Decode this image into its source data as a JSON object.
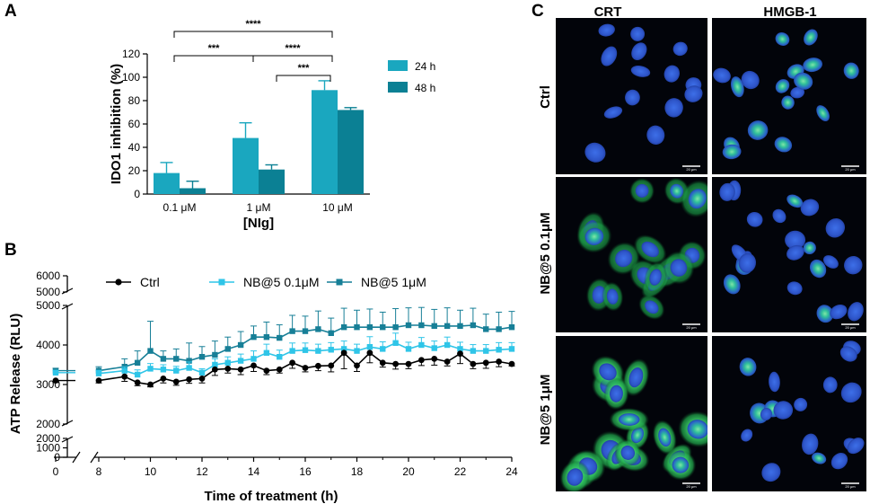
{
  "panels": {
    "a_label": "A",
    "b_label": "B",
    "c_label": "C"
  },
  "chart_data": [
    {
      "type": "bar",
      "panel": "A",
      "title": "",
      "xlabel": "[NIg]",
      "ylabel": "IDO1 inhibition (%)",
      "ylim": [
        0,
        120
      ],
      "yticks": [
        0,
        20,
        40,
        60,
        80,
        100,
        120
      ],
      "categories": [
        "0.1 μM",
        "1 μM",
        "10 μM"
      ],
      "series": [
        {
          "name": "24 h",
          "color": "#1aa7bf",
          "values": [
            18,
            48,
            89
          ],
          "errors": [
            9,
            13,
            8
          ]
        },
        {
          "name": "48 h",
          "color": "#0b8094",
          "values": [
            5,
            21,
            72
          ],
          "errors": [
            6,
            4,
            2
          ]
        }
      ],
      "significance": [
        {
          "label": "****",
          "from": "0.1 μM",
          "to": "10 μM",
          "level": 3
        },
        {
          "label": "***",
          "from": "0.1 μM",
          "to": "1 μM",
          "level": 2
        },
        {
          "label": "****",
          "from": "1 μM",
          "to": "10 μM",
          "level": 2
        },
        {
          "label": "***",
          "from": "1 μM",
          "to": "10 μM",
          "level": 1
        }
      ],
      "legend": "right"
    },
    {
      "type": "line",
      "panel": "B",
      "title": "",
      "xlabel": "Time of treatment (h)",
      "ylabel": "ATP Release (RLU)",
      "xticks": [
        0,
        8,
        10,
        12,
        14,
        16,
        18,
        20,
        22,
        24
      ],
      "yticks_lower": [
        0,
        1000,
        2000
      ],
      "yticks_main": [
        2000,
        3000,
        4000,
        5000
      ],
      "yticks_upper": [
        5000,
        6000
      ],
      "axis_breaks": {
        "x": [
          0,
          8
        ],
        "y": [
          [
            2000,
            2000
          ],
          [
            5000,
            5000
          ]
        ]
      },
      "series": [
        {
          "name": "Ctrl",
          "color": "#000000",
          "marker": "circle",
          "x": [
            0,
            8,
            9,
            9.5,
            10,
            10.5,
            11,
            11.5,
            12,
            12.5,
            13,
            13.5,
            14,
            14.5,
            15,
            15.5,
            16,
            16.5,
            17,
            17.5,
            18,
            18.5,
            19,
            19.5,
            20,
            20.5,
            21,
            21.5,
            22,
            22.5,
            23,
            23.5,
            24
          ],
          "y": [
            3100,
            3100,
            3200,
            3050,
            3000,
            3150,
            3070,
            3130,
            3150,
            3380,
            3400,
            3380,
            3480,
            3350,
            3380,
            3550,
            3420,
            3470,
            3480,
            3800,
            3480,
            3800,
            3550,
            3520,
            3520,
            3620,
            3650,
            3580,
            3780,
            3520,
            3550,
            3580,
            3520
          ],
          "errors": [
            50,
            60,
            120,
            80,
            60,
            110,
            90,
            100,
            110,
            150,
            110,
            130,
            150,
            100,
            90,
            140,
            100,
            120,
            160,
            400,
            150,
            250,
            110,
            130,
            120,
            140,
            160,
            110,
            250,
            120,
            140,
            130,
            50
          ]
        },
        {
          "name": "NB@5 0.1μM",
          "color": "#2fc5e8",
          "marker": "square",
          "x": [
            0,
            8,
            9,
            9.5,
            10,
            10.5,
            11,
            11.5,
            12,
            12.5,
            13,
            13.5,
            14,
            14.5,
            15,
            15.5,
            16,
            16.5,
            17,
            17.5,
            18,
            18.5,
            19,
            19.5,
            20,
            20.5,
            21,
            21.5,
            22,
            22.5,
            23,
            23.5,
            24
          ],
          "y": [
            3300,
            3280,
            3350,
            3250,
            3400,
            3380,
            3350,
            3420,
            3300,
            3500,
            3550,
            3600,
            3650,
            3800,
            3700,
            3850,
            3870,
            3850,
            3880,
            3900,
            3850,
            3950,
            3900,
            4050,
            3900,
            4000,
            3920,
            4000,
            3900,
            3850,
            3850,
            3880,
            3900
          ],
          "errors": [
            60,
            80,
            100,
            120,
            130,
            120,
            110,
            150,
            100,
            150,
            150,
            170,
            200,
            220,
            170,
            200,
            180,
            170,
            180,
            200,
            170,
            260,
            180,
            250,
            170,
            190,
            180,
            200,
            170,
            160,
            160,
            180,
            160
          ]
        },
        {
          "name": "NB@5 1μM",
          "color": "#177f97",
          "marker": "square",
          "x": [
            0,
            8,
            9,
            9.5,
            10,
            10.5,
            11,
            11.5,
            12,
            12.5,
            13,
            13.5,
            14,
            14.5,
            15,
            15.5,
            16,
            16.5,
            17,
            17.5,
            18,
            18.5,
            19,
            19.5,
            20,
            20.5,
            21,
            21.5,
            22,
            22.5,
            23,
            23.5,
            24
          ],
          "y": [
            3350,
            3350,
            3450,
            3550,
            3850,
            3650,
            3650,
            3600,
            3700,
            3750,
            3900,
            4000,
            4200,
            4200,
            4180,
            4350,
            4350,
            4400,
            4300,
            4450,
            4450,
            4450,
            4450,
            4450,
            4500,
            4500,
            4480,
            4480,
            4480,
            4500,
            4400,
            4400,
            4450
          ],
          "errors": [
            60,
            100,
            200,
            300,
            750,
            200,
            250,
            450,
            260,
            350,
            300,
            340,
            280,
            380,
            330,
            400,
            380,
            460,
            380,
            480,
            430,
            460,
            380,
            470,
            440,
            450,
            420,
            460,
            400,
            430,
            380,
            430,
            400
          ]
        }
      ],
      "legend": "top"
    }
  ],
  "micrographs": {
    "columns": [
      "CRT",
      "HMGB-1"
    ],
    "rows": [
      "Ctrl",
      "NB@5 0.1μM",
      "NB@5 1μM"
    ],
    "scale_label": "20 μm"
  }
}
